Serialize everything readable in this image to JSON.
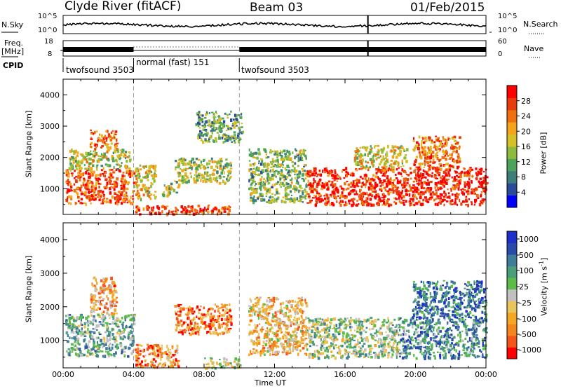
{
  "header": {
    "station": "Clyde River (fitACF)",
    "beam": "Beam 03",
    "date": "01/Feb/2015"
  },
  "top_panels": {
    "nsky_label": "N.Sky",
    "nsky_ticks": [
      "10^5",
      "10^0"
    ],
    "nsearch_label": "N.Search",
    "nsearch_ticks": [
      "10^5",
      "10^0"
    ],
    "freq_label_1": "Freq.",
    "freq_label_2": "[MHz]",
    "freq_ticks": [
      "18",
      "8"
    ],
    "nave_label": "Nave",
    "nave_ticks": [
      "60",
      "0"
    ],
    "cpid_label": "CPID",
    "cpid_segments": [
      {
        "label": "twofsound 3503",
        "start_hour": 0,
        "end_hour": 4
      },
      {
        "label": "normal (fast) 151",
        "start_hour": 4,
        "end_hour": 10
      },
      {
        "label": "twofsound 3503",
        "start_hour": 10,
        "end_hour": 24
      }
    ]
  },
  "chart_data": [
    {
      "type": "heatmap",
      "name": "power",
      "ylabel": "Slant Range [km]",
      "xlim": [
        0,
        24
      ],
      "ylim": [
        180,
        4500
      ],
      "yticks": [
        1000,
        2000,
        3000,
        4000
      ],
      "colorbar_label": "Power [dB]",
      "colorbar_ticks": [
        4,
        8,
        12,
        16,
        20,
        24,
        28
      ],
      "colorbar_range": [
        0,
        32
      ],
      "colors": [
        "#0000ff",
        "#2a4a9a",
        "#3d7d7a",
        "#4ca45c",
        "#8dbb3e",
        "#d6c028",
        "#f5a31a",
        "#f0700f",
        "#e83d0b",
        "#ff0000"
      ],
      "regions": [
        {
          "t": [
            0.1,
            4.0
          ],
          "r": [
            550,
            1650
          ],
          "level": 0.82
        },
        {
          "t": [
            0.3,
            3.8
          ],
          "r": [
            1650,
            2300
          ],
          "level": 0.5
        },
        {
          "t": [
            1.5,
            3.0
          ],
          "r": [
            2300,
            2900
          ],
          "level": 0.72
        },
        {
          "t": [
            4.0,
            5.2
          ],
          "r": [
            700,
            1800
          ],
          "level": 0.6
        },
        {
          "t": [
            5.6,
            6.6
          ],
          "r": [
            800,
            1200
          ],
          "level": 0.45
        },
        {
          "t": [
            6.3,
            9.5
          ],
          "r": [
            1200,
            2000
          ],
          "level": 0.48
        },
        {
          "t": [
            4.0,
            9.5
          ],
          "r": [
            200,
            500
          ],
          "level": 0.85
        },
        {
          "t": [
            7.5,
            10.2
          ],
          "r": [
            2500,
            3500
          ],
          "level": 0.35
        },
        {
          "t": [
            10.5,
            13.8
          ],
          "r": [
            600,
            2300
          ],
          "level": 0.4
        },
        {
          "t": [
            13.8,
            19.0
          ],
          "r": [
            500,
            1700
          ],
          "level": 0.88
        },
        {
          "t": [
            19.0,
            24.0
          ],
          "r": [
            500,
            1700
          ],
          "level": 0.92
        },
        {
          "t": [
            19.8,
            22.5
          ],
          "r": [
            1700,
            2700
          ],
          "level": 0.75
        },
        {
          "t": [
            16.5,
            19.5
          ],
          "r": [
            1700,
            2400
          ],
          "level": 0.55
        }
      ]
    },
    {
      "type": "heatmap",
      "name": "velocity",
      "xlabel": "Time UT",
      "ylabel": "Slant Range [km]",
      "xlim": [
        0,
        24
      ],
      "xticks": [
        "00:00",
        "04:00",
        "08:00",
        "12:00",
        "16:00",
        "20:00",
        "00:00"
      ],
      "ylim": [
        180,
        4500
      ],
      "yticks": [
        1000,
        2000,
        3000,
        4000
      ],
      "colorbar_label": "Velocity [m s^-1]",
      "colorbar_ticks": [
        "-1000",
        "-500",
        "-100",
        "-25",
        "25",
        "100",
        "500",
        "1000"
      ],
      "colors": [
        "#ff0000",
        "#f5541a",
        "#f5861e",
        "#f5a623",
        "#e8c45a",
        "#c0c0c0",
        "#5dbb4a",
        "#4a9e7a",
        "#3d7d9a",
        "#2a4aaa",
        "#1f2fcc"
      ],
      "regions": [
        {
          "t": [
            0.1,
            4.0
          ],
          "r": [
            550,
            1800
          ],
          "level": 0.62
        },
        {
          "t": [
            1.5,
            3.0
          ],
          "r": [
            1800,
            2900
          ],
          "level": 0.3
        },
        {
          "t": [
            4.0,
            6.5
          ],
          "r": [
            200,
            900
          ],
          "level": 0.25
        },
        {
          "t": [
            6.3,
            9.5
          ],
          "r": [
            1200,
            2100
          ],
          "level": 0.22
        },
        {
          "t": [
            8.0,
            10.0
          ],
          "r": [
            200,
            500
          ],
          "level": 0.5
        },
        {
          "t": [
            10.5,
            13.8
          ],
          "r": [
            600,
            2300
          ],
          "level": 0.35
        },
        {
          "t": [
            13.8,
            19.0
          ],
          "r": [
            500,
            1700
          ],
          "level": 0.55
        },
        {
          "t": [
            19.0,
            24.0
          ],
          "r": [
            500,
            1700
          ],
          "level": 0.72
        },
        {
          "t": [
            19.8,
            24.0
          ],
          "r": [
            1700,
            2800
          ],
          "level": 0.8
        }
      ]
    }
  ]
}
